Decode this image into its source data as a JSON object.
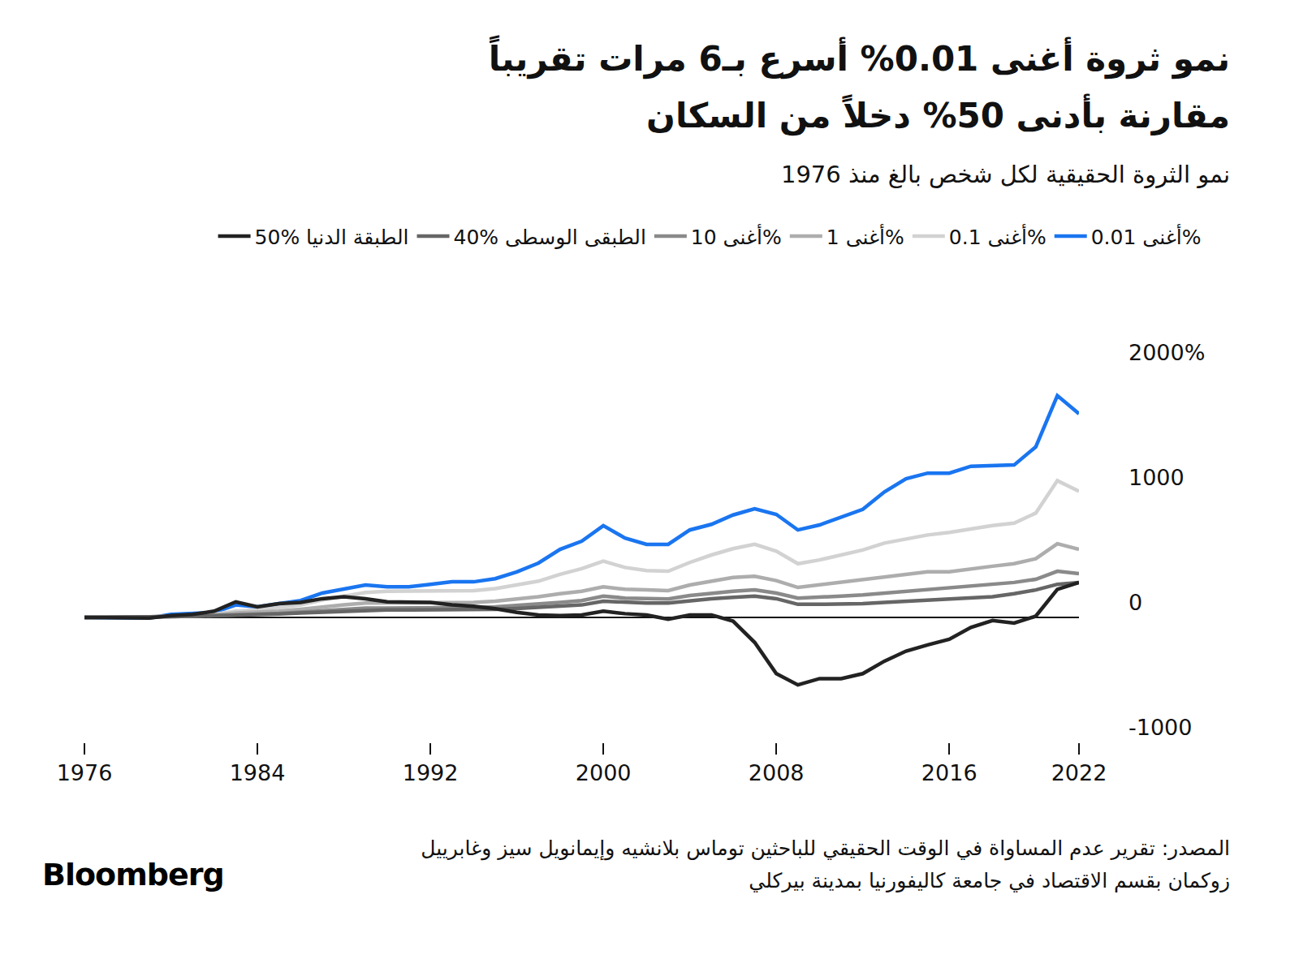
{
  "chart_data": {
    "type": "line",
    "title": "نمو ثروة أغنى 0.01% أسرع بـ6 مرات تقريباً\nمقارنة بأدنى 50% دخلاً من السكان",
    "subtitle": "نمو الثروة الحقيقية لكل شخص بالغ منذ 1976",
    "source": "المصدر: تقرير عدم المساواة في الوقت الحقيقي للباحثين توماس بلانشيه وإيمانويل سيز وغابرييل زوكمان بقسم الاقتصاد في جامعة كاليفورنيا بمدينة بيركلي",
    "brand": "Bloomberg",
    "x": [
      1976,
      1977,
      1978,
      1979,
      1980,
      1981,
      1982,
      1983,
      1984,
      1985,
      1986,
      1987,
      1988,
      1989,
      1990,
      1991,
      1992,
      1993,
      1994,
      1995,
      1996,
      1997,
      1998,
      1999,
      2000,
      2001,
      2002,
      2003,
      2004,
      2005,
      2006,
      2007,
      2008,
      2009,
      2010,
      2011,
      2012,
      2013,
      2014,
      2015,
      2016,
      2017,
      2018,
      2019,
      2020,
      2021,
      2022
    ],
    "series": [
      {
        "name": "أغنى 0.01%",
        "color": "#1a75f0",
        "values": [
          0,
          0,
          0,
          -5,
          25,
          30,
          40,
          100,
          85,
          110,
          135,
          195,
          225,
          260,
          245,
          245,
          265,
          285,
          285,
          310,
          365,
          435,
          545,
          610,
          735,
          635,
          585,
          585,
          700,
          745,
          820,
          870,
          825,
          700,
          740,
          800,
          865,
          1005,
          1110,
          1155,
          1155,
          1210,
          1215,
          1220,
          1365,
          1775,
          1630
        ]
      },
      {
        "name": "أغنى 0.1%",
        "color": "#d2d2d2",
        "values": [
          0,
          0,
          0,
          5,
          10,
          15,
          25,
          50,
          60,
          80,
          100,
          140,
          170,
          200,
          210,
          210,
          210,
          210,
          215,
          230,
          260,
          290,
          345,
          390,
          450,
          400,
          375,
          370,
          440,
          500,
          550,
          585,
          530,
          430,
          460,
          500,
          540,
          595,
          630,
          660,
          680,
          710,
          735,
          755,
          835,
          1095,
          1010
        ]
      },
      {
        "name": "أغنى 1%",
        "color": "#adadad",
        "values": [
          0,
          0,
          0,
          5,
          10,
          15,
          20,
          35,
          40,
          50,
          65,
          85,
          100,
          115,
          115,
          115,
          115,
          115,
          120,
          130,
          145,
          165,
          190,
          210,
          245,
          225,
          220,
          215,
          260,
          290,
          320,
          330,
          295,
          240,
          260,
          280,
          300,
          320,
          345,
          365,
          365,
          390,
          410,
          430,
          470,
          590,
          545
        ]
      },
      {
        "name": "أغنى 10%",
        "color": "#8a8a8a",
        "values": [
          0,
          0,
          0,
          3,
          6,
          10,
          14,
          22,
          25,
          32,
          42,
          55,
          65,
          75,
          75,
          75,
          75,
          75,
          80,
          85,
          95,
          105,
          120,
          135,
          170,
          155,
          150,
          148,
          175,
          195,
          210,
          220,
          195,
          155,
          160,
          170,
          180,
          195,
          210,
          225,
          240,
          255,
          270,
          280,
          305,
          370,
          350
        ]
      },
      {
        "name": "40% الطبقى الوسطى",
        "color": "#666666",
        "values": [
          0,
          0,
          0,
          3,
          6,
          9,
          12,
          18,
          22,
          27,
          35,
          42,
          50,
          57,
          60,
          60,
          60,
          60,
          62,
          65,
          72,
          80,
          90,
          100,
          130,
          120,
          115,
          115,
          135,
          150,
          160,
          170,
          150,
          105,
          105,
          105,
          110,
          120,
          130,
          140,
          148,
          155,
          165,
          190,
          220,
          265,
          280
        ]
      },
      {
        "name": "50% الطبقة الدنيا",
        "color": "#222222",
        "values": [
          0,
          0,
          -5,
          -5,
          15,
          25,
          50,
          125,
          85,
          110,
          120,
          150,
          165,
          150,
          125,
          120,
          120,
          100,
          90,
          70,
          40,
          20,
          15,
          20,
          50,
          30,
          20,
          -15,
          20,
          20,
          -30,
          -200,
          -450,
          -540,
          -490,
          -490,
          -450,
          -350,
          -270,
          -220,
          -175,
          -80,
          -25,
          -45,
          10,
          225,
          280
        ]
      }
    ],
    "xlim": [
      1976,
      2022
    ],
    "xticks": [
      1976,
      1984,
      1992,
      2000,
      2008,
      2016,
      2022
    ],
    "ylim": [
      -1000,
      2000
    ],
    "yticks": [
      {
        "value": -1000,
        "label": "-1000"
      },
      0,
      1000,
      {
        "value": 2000,
        "label": "2000%"
      }
    ],
    "grid": false,
    "legend": "top right"
  }
}
